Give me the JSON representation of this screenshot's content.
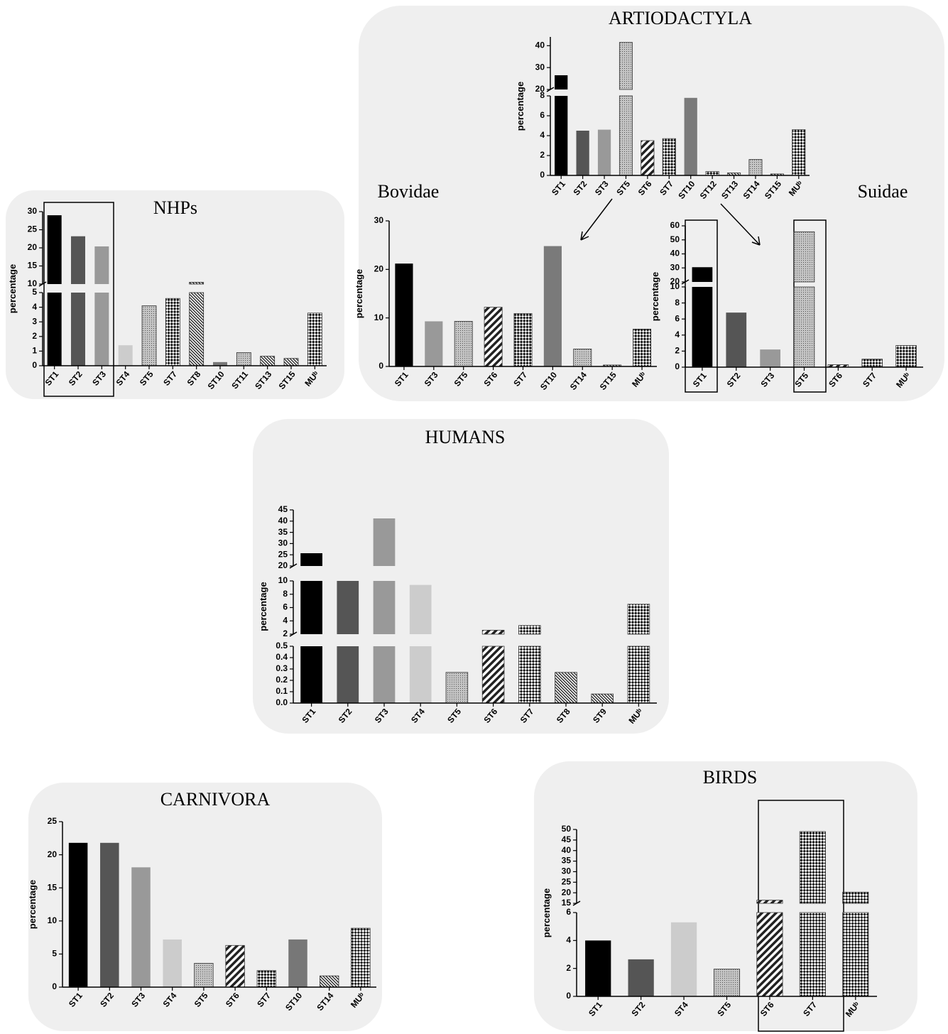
{
  "chart_data": [
    {
      "type": "bar",
      "title": "ARTIODACTYLA",
      "y_label": "percentage",
      "categories": [
        "ST1",
        "ST2",
        "ST3",
        "ST5",
        "ST6",
        "ST7",
        "ST10",
        "ST12",
        "ST13",
        "ST14",
        "ST15",
        "MUᵇ"
      ],
      "values": [
        26.5,
        4.5,
        4.6,
        41.5,
        3.5,
        3.7,
        7.8,
        0.4,
        0.25,
        1.6,
        0.15,
        4.6
      ],
      "colors": [
        "#000000",
        "#555555",
        "#999999",
        "dots",
        "hatch",
        "check",
        "#7a7a7a",
        "check",
        "fine",
        "dots",
        "fine",
        "check"
      ],
      "segments": [
        {
          "ylim": [
            0,
            8
          ],
          "yticks": [
            0,
            2,
            4,
            6,
            8
          ]
        },
        {
          "ylim": [
            20,
            44
          ],
          "yticks": [
            20,
            30,
            40
          ]
        }
      ]
    },
    {
      "type": "bar",
      "title": "Bovidae",
      "y_label": "percentage",
      "categories": [
        "ST1",
        "ST3",
        "ST5",
        "ST6",
        "ST7",
        "ST10",
        "ST14",
        "ST15",
        "MUᵇ"
      ],
      "values": [
        21.2,
        9.3,
        9.3,
        12.2,
        10.9,
        24.8,
        3.6,
        0.3,
        7.7
      ],
      "colors": [
        "#000000",
        "#999999",
        "dots",
        "hatch",
        "check",
        "#7a7a7a",
        "dots",
        "fine",
        "check"
      ],
      "ylim": [
        0,
        30
      ],
      "yticks": [
        0,
        10,
        20,
        30
      ]
    },
    {
      "type": "bar",
      "title": "Suidae",
      "y_label": "percentage",
      "categories": [
        "ST1",
        "ST2",
        "ST3",
        "ST5",
        "ST6",
        "ST7",
        "MUᵇ"
      ],
      "values": [
        30.5,
        6.8,
        2.2,
        55.8,
        0.3,
        1.0,
        2.7
      ],
      "colors": [
        "#000000",
        "#555555",
        "#999999",
        "dots",
        "hatch",
        "check",
        "check"
      ],
      "segments": [
        {
          "ylim": [
            0,
            10
          ],
          "yticks": [
            0,
            2,
            4,
            6,
            8,
            10
          ]
        },
        {
          "ylim": [
            20,
            60
          ],
          "yticks": [
            20,
            30,
            40,
            50,
            60
          ]
        }
      ]
    },
    {
      "type": "bar",
      "title": "NHPs",
      "y_label": "percentage",
      "categories": [
        "ST1",
        "ST2",
        "ST3",
        "ST4",
        "ST5",
        "ST7",
        "ST8",
        "ST10",
        "ST11",
        "ST13",
        "ST15",
        "MUᵇ"
      ],
      "values": [
        29,
        23.2,
        20.4,
        1.4,
        4.1,
        4.6,
        10.5,
        0.25,
        0.9,
        0.65,
        0.5,
        3.6
      ],
      "colors": [
        "#000000",
        "#555555",
        "#999999",
        "#cccccc",
        "dots",
        "check",
        "fine",
        "#777777",
        "dots",
        "fine",
        "fine",
        "check"
      ],
      "segments": [
        {
          "ylim": [
            0,
            5
          ],
          "yticks": [
            0,
            1,
            2,
            3,
            4,
            5
          ]
        },
        {
          "ylim": [
            10,
            30
          ],
          "yticks": [
            10,
            15,
            20,
            25,
            30
          ]
        }
      ]
    },
    {
      "type": "bar",
      "title": "HUMANS",
      "y_label": "percentage",
      "categories": [
        "ST1",
        "ST2",
        "ST3",
        "ST4",
        "ST5",
        "ST6",
        "ST7",
        "ST8",
        "ST9",
        "MUᵇ"
      ],
      "values": [
        25.7,
        10.1,
        41.2,
        9.4,
        0.27,
        2.6,
        3.3,
        0.27,
        0.08,
        6.5
      ],
      "colors": [
        "#000000",
        "#555555",
        "#999999",
        "#cccccc",
        "dots",
        "hatch",
        "check",
        "fine",
        "fine",
        "check"
      ],
      "segments": [
        {
          "ylim": [
            0,
            0.5
          ],
          "yticks": [
            {
              "value": 0,
              "label": "0.0"
            },
            0.1,
            0.2,
            0.3,
            0.4,
            0.5
          ]
        },
        {
          "ylim": [
            2,
            10
          ],
          "yticks": [
            2,
            4,
            6,
            8,
            10
          ]
        },
        {
          "ylim": [
            20,
            45
          ],
          "yticks": [
            20,
            25,
            30,
            35,
            40,
            45
          ]
        }
      ]
    },
    {
      "type": "bar",
      "title": "CARNIVORA",
      "y_label": "percentage",
      "categories": [
        "ST1",
        "ST2",
        "ST3",
        "ST4",
        "ST5",
        "ST6",
        "ST7",
        "ST10",
        "ST14",
        "MUᵇ"
      ],
      "values": [
        21.8,
        21.8,
        18.1,
        7.2,
        3.6,
        6.3,
        2.5,
        7.2,
        1.7,
        8.9
      ],
      "colors": [
        "#000000",
        "#555555",
        "#999999",
        "#cccccc",
        "dots",
        "hatch",
        "check",
        "#777777",
        "fine",
        "check"
      ],
      "ylim": [
        0,
        25
      ],
      "yticks": [
        0,
        5,
        10,
        15,
        20,
        25
      ]
    },
    {
      "type": "bar",
      "title": "BIRDS",
      "y_label": "percentage",
      "categories": [
        "ST1",
        "ST2",
        "ST4",
        "ST5",
        "ST6",
        "ST7",
        "MUᵇ"
      ],
      "values": [
        4.0,
        2.65,
        5.3,
        1.95,
        16.5,
        49,
        20.3
      ],
      "colors": [
        "#000000",
        "#555555",
        "#cccccc",
        "dots",
        "hatch",
        "check",
        "check"
      ],
      "segments": [
        {
          "ylim": [
            0,
            6
          ],
          "yticks": [
            0,
            2,
            4,
            6
          ]
        },
        {
          "ylim": [
            15,
            50
          ],
          "yticks": [
            15,
            20,
            25,
            30,
            35,
            40,
            45,
            50
          ]
        }
      ]
    }
  ]
}
